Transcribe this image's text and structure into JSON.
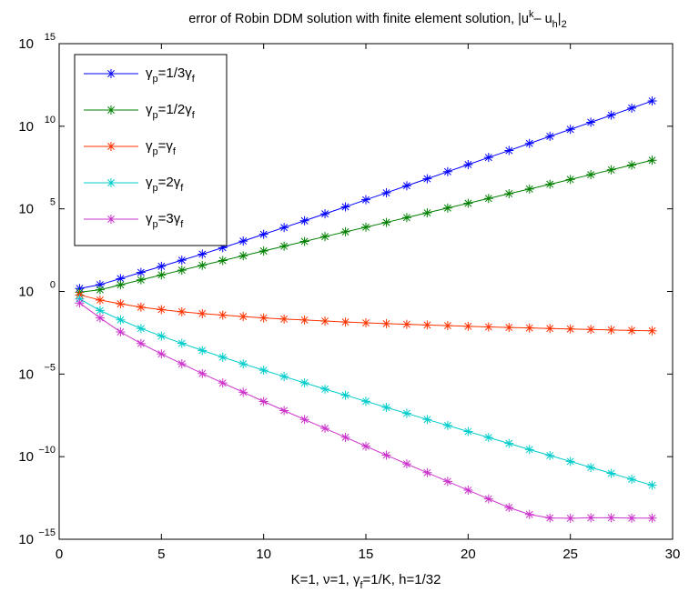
{
  "chart_data": {
    "type": "line",
    "title": "error of Robin DDM solution with finite element solution,  |u",
    "title_sup": "k",
    "title_mid": "– u",
    "title_sub_h": "h",
    "title_end": "|",
    "title_sub_2": "2",
    "xlabel_parts": [
      "K=1, ",
      "ν",
      "=1, ",
      "γ",
      "f",
      "=1/K, h=1/32"
    ],
    "yscale": "log",
    "xlim": [
      0,
      30
    ],
    "ylim": [
      1e-15,
      1000000000000000.0
    ],
    "xticks": [
      "0",
      "5",
      "10",
      "15",
      "20",
      "25",
      "30"
    ],
    "yticks": [
      {
        "base": "10",
        "exp": "−15"
      },
      {
        "base": "10",
        "exp": "−10"
      },
      {
        "base": "10",
        "exp": "−5"
      },
      {
        "base": "10",
        "exp": "0"
      },
      {
        "base": "10",
        "exp": "5"
      },
      {
        "base": "10",
        "exp": "10"
      },
      {
        "base": "10",
        "exp": "15"
      }
    ],
    "legend_position": "top-left",
    "marker": "asterisk",
    "x": [
      1,
      2,
      3,
      4,
      5,
      6,
      7,
      8,
      9,
      10,
      11,
      12,
      13,
      14,
      15,
      16,
      17,
      18,
      19,
      20,
      21,
      22,
      23,
      24,
      25,
      26,
      27,
      28,
      29
    ],
    "series": [
      {
        "label": {
          "g1": "γ",
          "s1": "p",
          "mid": "=1/3",
          "g2": "γ",
          "s2": "f"
        },
        "color": "#0000ff",
        "log10_values": [
          0.18,
          0.41,
          0.78,
          1.15,
          1.52,
          1.89,
          2.26,
          2.65,
          3.05,
          3.46,
          3.87,
          4.28,
          4.7,
          5.12,
          5.55,
          5.97,
          6.4,
          6.82,
          7.25,
          7.68,
          8.11,
          8.53,
          8.96,
          9.39,
          9.81,
          10.24,
          10.67,
          11.1,
          11.53
        ]
      },
      {
        "label": {
          "g1": "γ",
          "s1": "p",
          "mid": "=1/2",
          "g2": "γ",
          "s2": "f"
        },
        "color": "#008000",
        "log10_values": [
          -0.05,
          0.1,
          0.4,
          0.7,
          1.0,
          1.29,
          1.58,
          1.87,
          2.16,
          2.45,
          2.74,
          3.03,
          3.32,
          3.61,
          3.89,
          4.18,
          4.47,
          4.76,
          5.05,
          5.34,
          5.63,
          5.92,
          6.2,
          6.49,
          6.78,
          7.07,
          7.36,
          7.65,
          7.94
        ]
      },
      {
        "label": {
          "g1": "γ",
          "s1": "p",
          "mid": "=",
          "g2": "γ",
          "s2": "f"
        },
        "color": "#ff3300",
        "log10_values": [
          -0.21,
          -0.52,
          -0.75,
          -0.95,
          -1.1,
          -1.23,
          -1.34,
          -1.43,
          -1.52,
          -1.6,
          -1.67,
          -1.73,
          -1.79,
          -1.85,
          -1.9,
          -1.95,
          -1.99,
          -2.03,
          -2.07,
          -2.11,
          -2.15,
          -2.18,
          -2.21,
          -2.24,
          -2.27,
          -2.3,
          -2.33,
          -2.36,
          -2.38
        ]
      },
      {
        "label": {
          "g1": "γ",
          "s1": "p",
          "mid": "=2",
          "g2": "γ",
          "s2": "f"
        },
        "color": "#00cccc",
        "log10_values": [
          -0.45,
          -1.15,
          -1.72,
          -2.24,
          -2.7,
          -3.14,
          -3.57,
          -3.98,
          -4.38,
          -4.77,
          -5.15,
          -5.53,
          -5.91,
          -6.28,
          -6.65,
          -7.02,
          -7.38,
          -7.75,
          -8.11,
          -8.48,
          -8.84,
          -9.2,
          -9.57,
          -9.93,
          -10.29,
          -10.65,
          -11.01,
          -11.37,
          -11.73
        ]
      },
      {
        "label": {
          "g1": "γ",
          "s1": "p",
          "mid": "=3",
          "g2": "γ",
          "s2": "f"
        },
        "color": "#cc33cc",
        "log10_values": [
          -0.7,
          -1.6,
          -2.45,
          -3.15,
          -3.78,
          -4.38,
          -4.97,
          -5.54,
          -6.1,
          -6.66,
          -7.21,
          -7.75,
          -8.29,
          -8.83,
          -9.37,
          -9.91,
          -10.44,
          -10.97,
          -11.5,
          -12.03,
          -12.56,
          -13.08,
          -13.5,
          -13.71,
          -13.73,
          -13.7,
          -13.7,
          -13.72,
          -13.72
        ]
      }
    ]
  }
}
